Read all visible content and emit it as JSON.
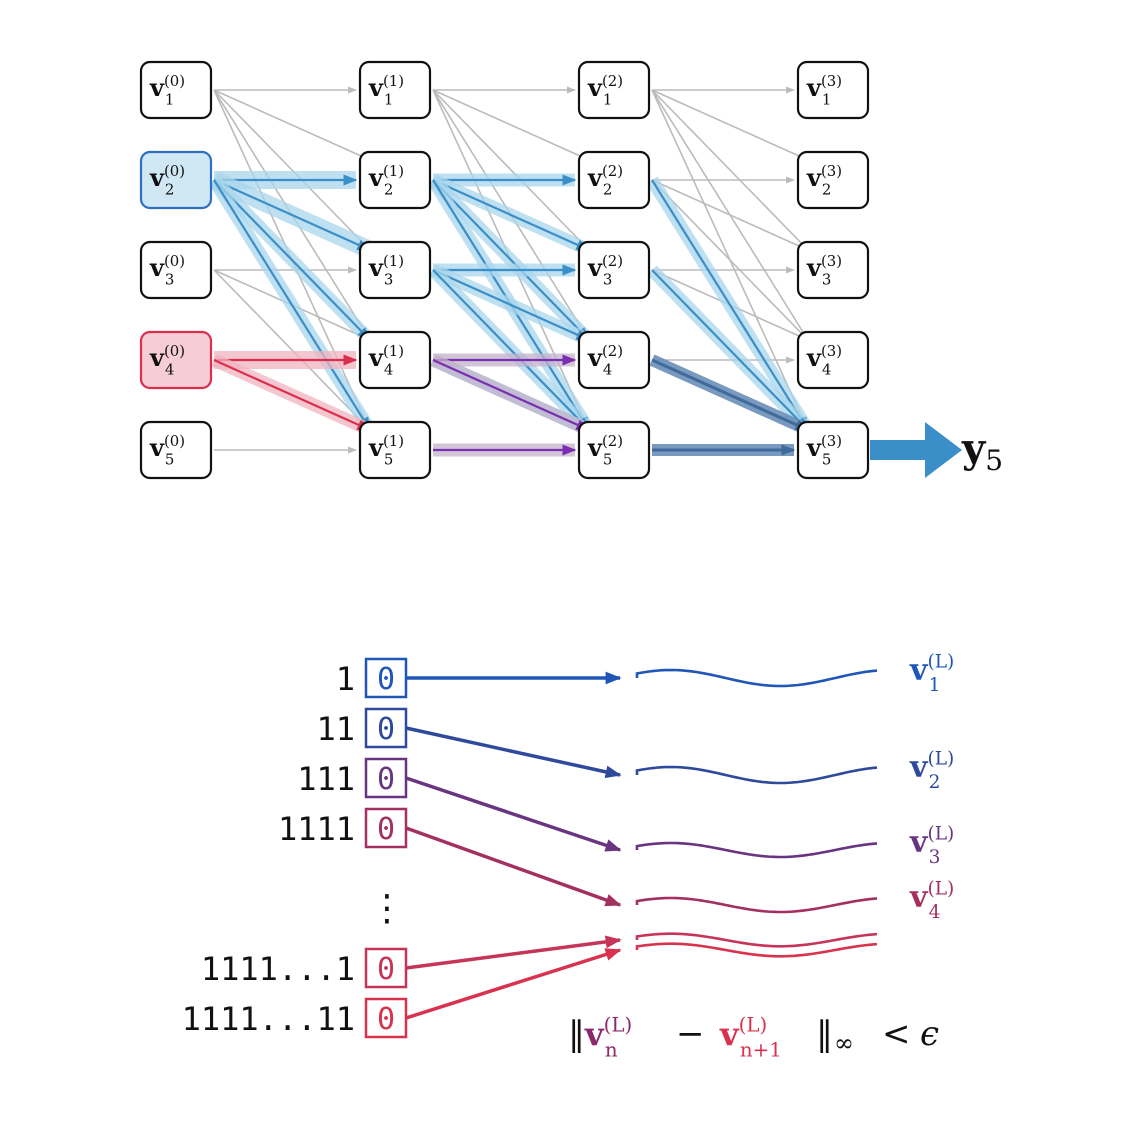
{
  "graph": {
    "layers": [
      [
        {
          "var": "v",
          "sub": "1",
          "sup": "(0)",
          "highlight": "none"
        },
        {
          "var": "v",
          "sub": "2",
          "sup": "(0)",
          "highlight": "blue"
        },
        {
          "var": "v",
          "sub": "3",
          "sup": "(0)",
          "highlight": "none"
        },
        {
          "var": "v",
          "sub": "4",
          "sup": "(0)",
          "highlight": "red"
        },
        {
          "var": "v",
          "sub": "5",
          "sup": "(0)",
          "highlight": "none"
        }
      ],
      [
        {
          "var": "v",
          "sub": "1",
          "sup": "(1)",
          "highlight": "none"
        },
        {
          "var": "v",
          "sub": "2",
          "sup": "(1)",
          "highlight": "none"
        },
        {
          "var": "v",
          "sub": "3",
          "sup": "(1)",
          "highlight": "none"
        },
        {
          "var": "v",
          "sub": "4",
          "sup": "(1)",
          "highlight": "none"
        },
        {
          "var": "v",
          "sub": "5",
          "sup": "(1)",
          "highlight": "none"
        }
      ],
      [
        {
          "var": "v",
          "sub": "1",
          "sup": "(2)",
          "highlight": "none"
        },
        {
          "var": "v",
          "sub": "2",
          "sup": "(2)",
          "highlight": "none"
        },
        {
          "var": "v",
          "sub": "3",
          "sup": "(2)",
          "highlight": "none"
        },
        {
          "var": "v",
          "sub": "4",
          "sup": "(2)",
          "highlight": "none"
        },
        {
          "var": "v",
          "sub": "5",
          "sup": "(2)",
          "highlight": "none"
        }
      ],
      [
        {
          "var": "v",
          "sub": "1",
          "sup": "(3)",
          "highlight": "none"
        },
        {
          "var": "v",
          "sub": "2",
          "sup": "(3)",
          "highlight": "none"
        },
        {
          "var": "v",
          "sub": "3",
          "sup": "(3)",
          "highlight": "none"
        },
        {
          "var": "v",
          "sub": "4",
          "sup": "(3)",
          "highlight": "none"
        },
        {
          "var": "v",
          "sub": "5",
          "sup": "(3)",
          "highlight": "none"
        }
      ]
    ],
    "output": {
      "var": "y",
      "sub": "5"
    },
    "colors": {
      "gray": "#bbbbbb",
      "blue": "#3a8fc9",
      "blue_light": "#a9d6ec",
      "blue_dark": "#3e6b9c",
      "red": "#dc2f4d",
      "red_light": "#f1b4c0",
      "purple": "#7a2fb0",
      "purple_light": "#c4b2cc",
      "node_blue_fill": "#cfe8f4",
      "node_blue_stroke": "#2e6fbf",
      "node_red_fill": "#f6cdd6",
      "node_red_stroke": "#dc2f4d"
    },
    "edges": [
      {
        "from": [
          0,
          0
        ],
        "to": [
          1,
          0
        ],
        "style": "gray"
      },
      {
        "from": [
          0,
          0
        ],
        "to": [
          1,
          1
        ],
        "style": "gray"
      },
      {
        "from": [
          0,
          0
        ],
        "to": [
          1,
          2
        ],
        "style": "gray"
      },
      {
        "from": [
          0,
          0
        ],
        "to": [
          1,
          3
        ],
        "style": "gray"
      },
      {
        "from": [
          0,
          0
        ],
        "to": [
          1,
          4
        ],
        "style": "gray"
      },
      {
        "from": [
          0,
          2
        ],
        "to": [
          1,
          2
        ],
        "style": "gray"
      },
      {
        "from": [
          0,
          2
        ],
        "to": [
          1,
          3
        ],
        "style": "gray"
      },
      {
        "from": [
          0,
          2
        ],
        "to": [
          1,
          4
        ],
        "style": "gray"
      },
      {
        "from": [
          0,
          4
        ],
        "to": [
          1,
          4
        ],
        "style": "gray"
      },
      {
        "from": [
          1,
          0
        ],
        "to": [
          2,
          0
        ],
        "style": "gray"
      },
      {
        "from": [
          1,
          0
        ],
        "to": [
          2,
          1
        ],
        "style": "gray"
      },
      {
        "from": [
          1,
          0
        ],
        "to": [
          2,
          2
        ],
        "style": "gray"
      },
      {
        "from": [
          1,
          0
        ],
        "to": [
          2,
          3
        ],
        "style": "gray"
      },
      {
        "from": [
          1,
          0
        ],
        "to": [
          2,
          4
        ],
        "style": "gray"
      },
      {
        "from": [
          2,
          0
        ],
        "to": [
          3,
          0
        ],
        "style": "gray"
      },
      {
        "from": [
          2,
          0
        ],
        "to": [
          3,
          1
        ],
        "style": "gray"
      },
      {
        "from": [
          2,
          0
        ],
        "to": [
          3,
          2
        ],
        "style": "gray"
      },
      {
        "from": [
          2,
          0
        ],
        "to": [
          3,
          3
        ],
        "style": "gray"
      },
      {
        "from": [
          2,
          0
        ],
        "to": [
          3,
          4
        ],
        "style": "gray"
      },
      {
        "from": [
          2,
          1
        ],
        "to": [
          3,
          1
        ],
        "style": "gray"
      },
      {
        "from": [
          2,
          1
        ],
        "to": [
          3,
          2
        ],
        "style": "gray"
      },
      {
        "from": [
          2,
          1
        ],
        "to": [
          3,
          3
        ],
        "style": "gray"
      },
      {
        "from": [
          2,
          2
        ],
        "to": [
          3,
          2
        ],
        "style": "gray"
      },
      {
        "from": [
          2,
          2
        ],
        "to": [
          3,
          3
        ],
        "style": "gray"
      },
      {
        "from": [
          2,
          3
        ],
        "to": [
          3,
          3
        ],
        "style": "gray"
      },
      {
        "from": [
          0,
          1
        ],
        "to": [
          1,
          1
        ],
        "style": "blue",
        "weight": 3
      },
      {
        "from": [
          0,
          1
        ],
        "to": [
          1,
          2
        ],
        "style": "blue",
        "weight": 3
      },
      {
        "from": [
          0,
          1
        ],
        "to": [
          1,
          3
        ],
        "style": "blue",
        "weight": 2
      },
      {
        "from": [
          0,
          1
        ],
        "to": [
          1,
          4
        ],
        "style": "blue",
        "weight": 2
      },
      {
        "from": [
          1,
          1
        ],
        "to": [
          2,
          1
        ],
        "style": "blue",
        "weight": 2
      },
      {
        "from": [
          1,
          1
        ],
        "to": [
          2,
          2
        ],
        "style": "blue",
        "weight": 2
      },
      {
        "from": [
          1,
          1
        ],
        "to": [
          2,
          3
        ],
        "style": "blue",
        "weight": 2
      },
      {
        "from": [
          1,
          1
        ],
        "to": [
          2,
          4
        ],
        "style": "blue",
        "weight": 2
      },
      {
        "from": [
          1,
          2
        ],
        "to": [
          2,
          2
        ],
        "style": "blue",
        "weight": 2
      },
      {
        "from": [
          1,
          2
        ],
        "to": [
          2,
          3
        ],
        "style": "blue",
        "weight": 2
      },
      {
        "from": [
          1,
          2
        ],
        "to": [
          2,
          4
        ],
        "style": "blue",
        "weight": 2
      },
      {
        "from": [
          1,
          3
        ],
        "to": [
          2,
          4
        ],
        "style": "blue",
        "weight": 2
      },
      {
        "from": [
          2,
          1
        ],
        "to": [
          3,
          4
        ],
        "style": "blue",
        "weight": 2
      },
      {
        "from": [
          2,
          2
        ],
        "to": [
          3,
          4
        ],
        "style": "blue",
        "weight": 2
      },
      {
        "from": [
          0,
          3
        ],
        "to": [
          1,
          3
        ],
        "style": "red",
        "weight": 3
      },
      {
        "from": [
          0,
          3
        ],
        "to": [
          1,
          4
        ],
        "style": "red",
        "weight": 2
      },
      {
        "from": [
          1,
          3
        ],
        "to": [
          2,
          3
        ],
        "style": "purple",
        "weight": 2
      },
      {
        "from": [
          1,
          3
        ],
        "to": [
          2,
          4
        ],
        "style": "purple",
        "weight": 2
      },
      {
        "from": [
          1,
          4
        ],
        "to": [
          2,
          4
        ],
        "style": "purple",
        "weight": 2
      },
      {
        "from": [
          2,
          3
        ],
        "to": [
          3,
          4
        ],
        "style": "dark",
        "weight": 3
      },
      {
        "from": [
          2,
          4
        ],
        "to": [
          3,
          4
        ],
        "style": "dark",
        "weight": 3
      }
    ]
  },
  "sequences": {
    "rows": [
      {
        "label": "1",
        "bit": "0",
        "color": "#1f56b8",
        "curve": {
          "var": "v",
          "sub": "1",
          "sup": "(L)"
        }
      },
      {
        "label": "11",
        "bit": "0",
        "color": "#2f4a9c",
        "curve": {
          "var": "v",
          "sub": "2",
          "sup": "(L)"
        }
      },
      {
        "label": "111",
        "bit": "0",
        "color": "#6a3580",
        "curve": {
          "var": "v",
          "sub": "3",
          "sup": "(L)"
        }
      },
      {
        "label": "1111",
        "bit": "0",
        "color": "#a33060",
        "curve": {
          "var": "v",
          "sub": "4",
          "sup": "(L)"
        }
      },
      {
        "label": "1111...1",
        "bit": "0",
        "color": "#c63558",
        "curve": null
      },
      {
        "label": "1111...11",
        "bit": "0",
        "color": "#d8324f",
        "curve": null
      }
    ],
    "ellipsis": "⋮",
    "convergence": {
      "norm_open": "‖",
      "left": {
        "var": "v",
        "sub": "n",
        "sup": "(L)"
      },
      "minus": "−",
      "right": {
        "var": "v",
        "sub": "n+1",
        "sup": "(L)"
      },
      "norm_close": "‖",
      "norm_sub": "∞",
      "relation": "<",
      "epsilon": "ϵ"
    }
  }
}
